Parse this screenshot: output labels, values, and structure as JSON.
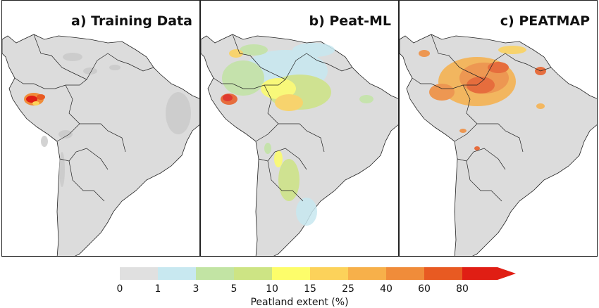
{
  "panels": [
    {
      "id": "a",
      "title": "a) Training Data"
    },
    {
      "id": "b",
      "title": "b) Peat-ML"
    },
    {
      "id": "c",
      "title": "c) PEATMAP"
    }
  ],
  "colorbar": {
    "label": "Peatland extent (%)",
    "ticks": [
      "0",
      "1",
      "3",
      "5",
      "10",
      "15",
      "25",
      "40",
      "60",
      "80"
    ],
    "colors": [
      "#e0e0e0",
      "#c8e8f0",
      "#c2e4a4",
      "#cde484",
      "#fdfd6a",
      "#fcd25a",
      "#f7b04a",
      "#f08c3a",
      "#e85a22",
      "#e01e14"
    ]
  },
  "map": {
    "land_color": "#dcdcdc",
    "ocean_color": "#ffffff",
    "border_color": "#222222"
  }
}
